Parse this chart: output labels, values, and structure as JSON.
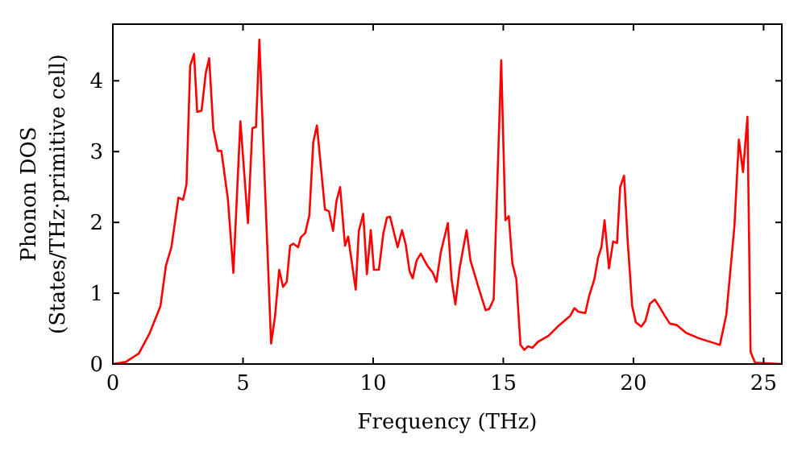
{
  "chart_data": {
    "type": "line",
    "xlabel": "Frequency (THz)",
    "ylabel": "Phonon DOS\n(States/THz·primitive cell)",
    "xlim": [
      0,
      25.7
    ],
    "ylim": [
      0,
      4.8
    ],
    "xticks": [
      0,
      5,
      10,
      15,
      20,
      25
    ],
    "yticks": [
      0,
      1,
      2,
      3,
      4
    ],
    "grid": false,
    "marker": "none",
    "line_style": "solid",
    "series": [
      {
        "color": "#ff0000",
        "x": [
          0,
          0.5,
          1.0,
          1.42,
          1.83,
          2.04,
          2.25,
          2.52,
          2.7,
          2.83,
          2.97,
          3.12,
          3.24,
          3.41,
          3.57,
          3.7,
          3.86,
          4.03,
          4.17,
          4.42,
          4.63,
          4.9,
          5.19,
          5.36,
          5.5,
          5.63,
          5.83,
          6.08,
          6.23,
          6.39,
          6.54,
          6.68,
          6.81,
          6.93,
          7.12,
          7.22,
          7.39,
          7.55,
          7.7,
          7.84,
          8.15,
          8.3,
          8.46,
          8.59,
          8.73,
          8.92,
          9.04,
          9.33,
          9.45,
          9.62,
          9.76,
          9.91,
          10.03,
          10.22,
          10.39,
          10.53,
          10.65,
          10.94,
          11.11,
          11.25,
          11.4,
          11.52,
          11.67,
          11.83,
          12.08,
          12.29,
          12.43,
          12.6,
          12.87,
          13.01,
          13.16,
          13.32,
          13.59,
          13.74,
          14.05,
          14.32,
          14.46,
          14.63,
          14.92,
          15.08,
          15.21,
          15.35,
          15.5,
          15.66,
          15.81,
          15.95,
          16.12,
          16.32,
          16.74,
          17.15,
          17.57,
          17.73,
          17.88,
          18.15,
          18.29,
          18.5,
          18.64,
          18.77,
          18.89,
          19.06,
          19.22,
          19.37,
          19.49,
          19.64,
          19.78,
          19.95,
          20.09,
          20.3,
          20.46,
          20.63,
          20.82,
          20.98,
          21.19,
          21.4,
          21.67,
          22.02,
          22.54,
          23.06,
          23.32,
          23.57,
          23.88,
          24.05,
          24.21,
          24.38,
          24.5,
          24.67,
          25.7
        ],
        "values": [
          0,
          0.03,
          0.15,
          0.44,
          0.82,
          1.39,
          1.65,
          2.35,
          2.32,
          2.54,
          4.21,
          4.38,
          3.56,
          3.58,
          4.11,
          4.32,
          3.32,
          3.01,
          3.01,
          2.33,
          1.29,
          3.43,
          1.99,
          3.33,
          3.35,
          4.58,
          2.64,
          0.29,
          0.67,
          1.33,
          1.09,
          1.16,
          1.67,
          1.7,
          1.65,
          1.79,
          1.85,
          2.1,
          3.13,
          3.37,
          2.18,
          2.16,
          1.88,
          2.3,
          2.5,
          1.67,
          1.8,
          1.05,
          1.88,
          2.12,
          1.27,
          1.89,
          1.33,
          1.33,
          1.84,
          2.07,
          2.08,
          1.65,
          1.89,
          1.69,
          1.31,
          1.21,
          1.46,
          1.56,
          1.39,
          1.29,
          1.16,
          1.58,
          1.99,
          1.2,
          0.84,
          1.35,
          1.89,
          1.46,
          1.08,
          0.76,
          0.78,
          0.91,
          4.29,
          2.03,
          2.09,
          1.42,
          1.2,
          0.27,
          0.2,
          0.25,
          0.23,
          0.31,
          0.4,
          0.55,
          0.68,
          0.79,
          0.74,
          0.72,
          0.95,
          1.2,
          1.5,
          1.65,
          2.03,
          1.35,
          1.73,
          1.71,
          2.5,
          2.66,
          1.73,
          0.82,
          0.59,
          0.53,
          0.61,
          0.85,
          0.91,
          0.82,
          0.69,
          0.57,
          0.55,
          0.44,
          0.36,
          0.3,
          0.27,
          0.7,
          1.95,
          3.17,
          2.71,
          3.49,
          0.17,
          0.02,
          0
        ]
      }
    ]
  }
}
